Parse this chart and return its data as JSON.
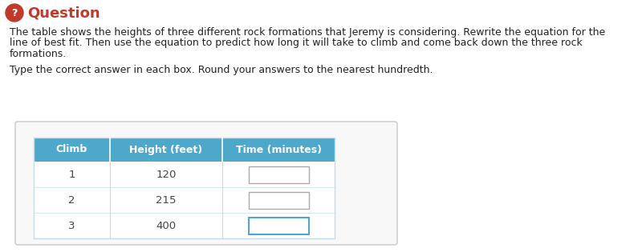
{
  "title": "Question",
  "title_color": "#c0392b",
  "icon_color": "#c0392b",
  "body_lines": [
    "The table shows the heights of three different rock formations that Jeremy is considering. Rewrite the equation for the",
    "line of best fit. Then use the equation to predict how long it will take to climb and come back down the three rock",
    "formations.",
    "",
    "Type the correct answer in each box. Round your answers to the nearest hundredth."
  ],
  "table_header": [
    "Climb",
    "Height (feet)",
    "Time (minutes)"
  ],
  "table_rows": [
    [
      "1",
      "120"
    ],
    [
      "2",
      "215"
    ],
    [
      "3",
      "400"
    ]
  ],
  "header_bg": "#4da8cb",
  "header_text_color": "#ffffff",
  "row_bg": "#ffffff",
  "row_text_color": "#444444",
  "cell_divider_color": "#c8dce8",
  "row_divider_color": "#d8e8f0",
  "panel_bg": "#f8f8f8",
  "panel_border": "#c8c8c8",
  "background_color": "#ffffff",
  "input_box_border_normal": "#aaaaaa",
  "input_box_border_active": "#4da8cb",
  "active_row": 2
}
